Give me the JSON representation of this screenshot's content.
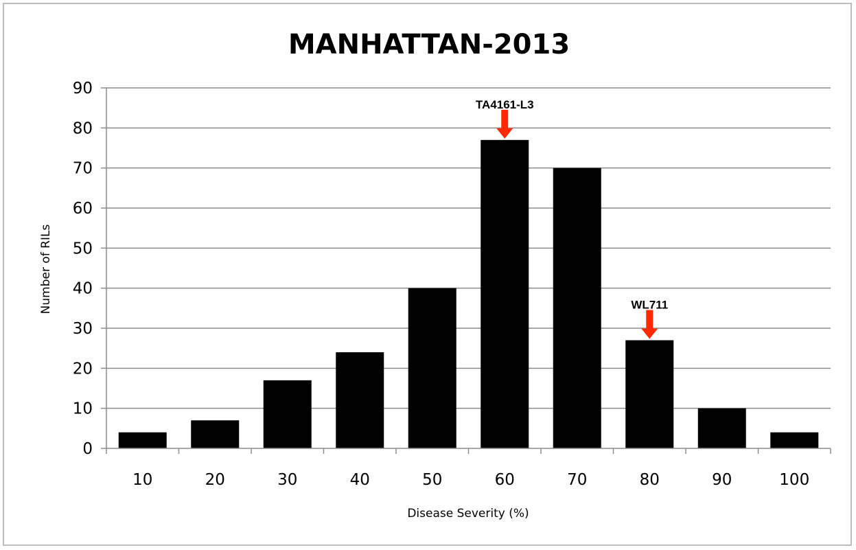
{
  "chart_data": {
    "type": "bar",
    "title": "MANHATTAN-2013",
    "xlabel": "Disease Severity (%)",
    "ylabel": "Number of RILs",
    "categories": [
      "10",
      "20",
      "30",
      "40",
      "50",
      "60",
      "70",
      "80",
      "90",
      "100"
    ],
    "values": [
      4,
      7,
      17,
      24,
      40,
      77,
      70,
      27,
      10,
      4
    ],
    "ylim": [
      0,
      90
    ],
    "yticks": [
      "0",
      "10",
      "20",
      "30",
      "40",
      "50",
      "60",
      "70",
      "80",
      "90"
    ],
    "grid": true,
    "legend": "none",
    "bar_color": "#000000",
    "grid_color": "#8c8c8c",
    "annotations": [
      {
        "text": "TA4161-L3",
        "category": "60",
        "color": "#ff2a00"
      },
      {
        "text": "WL711",
        "category": "80",
        "color": "#ff2a00"
      }
    ]
  }
}
